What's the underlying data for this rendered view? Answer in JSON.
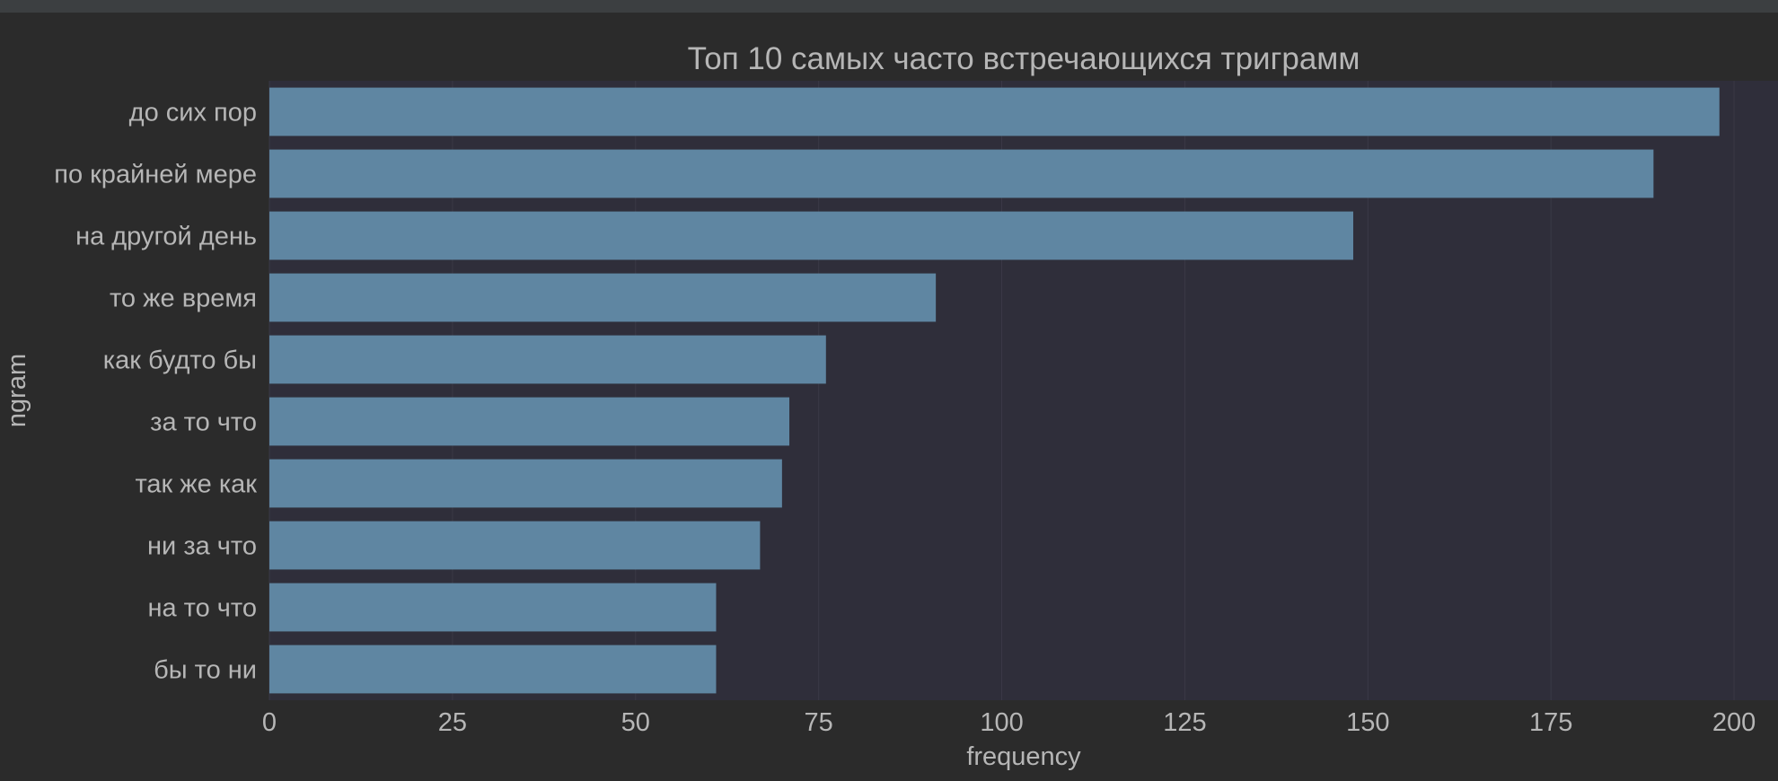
{
  "chart_data": {
    "type": "bar",
    "orientation": "horizontal",
    "title": "Топ 10 самых часто встречающихся триграмм",
    "xlabel": "frequency",
    "ylabel": "ngram",
    "categories": [
      "до сих пор",
      "по крайней мере",
      "на другой день",
      "то же время",
      "как будто бы",
      "за то что",
      "так же как",
      "ни за что",
      "на то что",
      "бы то ни"
    ],
    "values": [
      198,
      189,
      148,
      91,
      76,
      71,
      70,
      67,
      61,
      61
    ],
    "xlim": [
      0,
      206
    ],
    "xticks": [
      0,
      25,
      50,
      75,
      100,
      125,
      150,
      175,
      200
    ],
    "grid": true,
    "colors": {
      "bar": "#5f86a2",
      "plot_bg": "#2f2e3a",
      "figure_bg": "#2b2b2b",
      "text": "#b6b6b6",
      "grid": "#3a3946"
    }
  }
}
